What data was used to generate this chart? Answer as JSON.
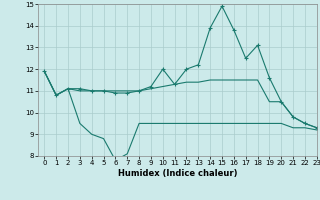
{
  "x": [
    0,
    1,
    2,
    3,
    4,
    5,
    6,
    7,
    8,
    9,
    10,
    11,
    12,
    13,
    14,
    15,
    16,
    17,
    18,
    19,
    20,
    21,
    22,
    23
  ],
  "line_upper": [
    11.9,
    10.8,
    11.1,
    11.1,
    11.0,
    11.0,
    10.9,
    10.9,
    11.0,
    11.2,
    12.0,
    11.3,
    12.0,
    12.2,
    13.9,
    14.9,
    13.8,
    12.5,
    13.1,
    11.6,
    10.5,
    9.8,
    9.5,
    9.3
  ],
  "line_mid": [
    11.9,
    10.8,
    11.1,
    11.0,
    11.0,
    11.0,
    11.0,
    11.0,
    11.0,
    11.1,
    11.2,
    11.3,
    11.4,
    11.4,
    11.5,
    11.5,
    11.5,
    11.5,
    11.5,
    10.5,
    10.5,
    9.8,
    9.5,
    9.3
  ],
  "line_lower": [
    11.9,
    10.8,
    11.1,
    9.5,
    9.0,
    8.8,
    7.8,
    8.1,
    9.5,
    9.5,
    9.5,
    9.5,
    9.5,
    9.5,
    9.5,
    9.5,
    9.5,
    9.5,
    9.5,
    9.5,
    9.5,
    9.3,
    9.3,
    9.2
  ],
  "line_color": "#1a7a6e",
  "bg_color": "#cceaea",
  "grid_color": "#aacccc",
  "xlabel": "Humidex (Indice chaleur)",
  "ylim": [
    8,
    15
  ],
  "xlim": [
    -0.5,
    23
  ],
  "yticks": [
    8,
    9,
    10,
    11,
    12,
    13,
    14,
    15
  ],
  "xticks": [
    0,
    1,
    2,
    3,
    4,
    5,
    6,
    7,
    8,
    9,
    10,
    11,
    12,
    13,
    14,
    15,
    16,
    17,
    18,
    19,
    20,
    21,
    22,
    23
  ]
}
